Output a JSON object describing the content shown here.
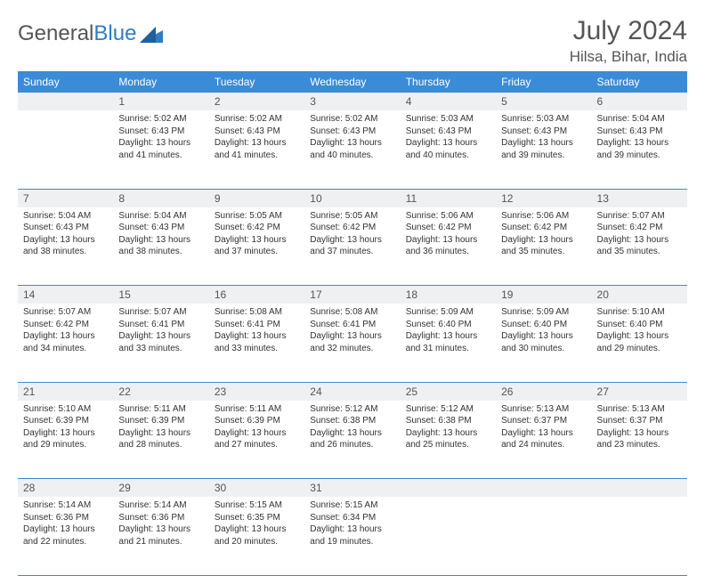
{
  "logo": {
    "text1": "General",
    "text2": "Blue"
  },
  "title": "July 2024",
  "location": "Hilsa, Bihar, India",
  "weekdays": [
    "Sunday",
    "Monday",
    "Tuesday",
    "Wednesday",
    "Thursday",
    "Friday",
    "Saturday"
  ],
  "colors": {
    "header_bg": "#3a8bd8",
    "header_fg": "#ffffff",
    "daynum_bg": "#eef0f2",
    "row_divider": "#3a8bd8",
    "text": "#555555"
  },
  "weeks": [
    [
      {
        "day": "",
        "lines": []
      },
      {
        "day": "1",
        "lines": [
          "Sunrise: 5:02 AM",
          "Sunset: 6:43 PM",
          "Daylight: 13 hours",
          "and 41 minutes."
        ]
      },
      {
        "day": "2",
        "lines": [
          "Sunrise: 5:02 AM",
          "Sunset: 6:43 PM",
          "Daylight: 13 hours",
          "and 41 minutes."
        ]
      },
      {
        "day": "3",
        "lines": [
          "Sunrise: 5:02 AM",
          "Sunset: 6:43 PM",
          "Daylight: 13 hours",
          "and 40 minutes."
        ]
      },
      {
        "day": "4",
        "lines": [
          "Sunrise: 5:03 AM",
          "Sunset: 6:43 PM",
          "Daylight: 13 hours",
          "and 40 minutes."
        ]
      },
      {
        "day": "5",
        "lines": [
          "Sunrise: 5:03 AM",
          "Sunset: 6:43 PM",
          "Daylight: 13 hours",
          "and 39 minutes."
        ]
      },
      {
        "day": "6",
        "lines": [
          "Sunrise: 5:04 AM",
          "Sunset: 6:43 PM",
          "Daylight: 13 hours",
          "and 39 minutes."
        ]
      }
    ],
    [
      {
        "day": "7",
        "lines": [
          "Sunrise: 5:04 AM",
          "Sunset: 6:43 PM",
          "Daylight: 13 hours",
          "and 38 minutes."
        ]
      },
      {
        "day": "8",
        "lines": [
          "Sunrise: 5:04 AM",
          "Sunset: 6:43 PM",
          "Daylight: 13 hours",
          "and 38 minutes."
        ]
      },
      {
        "day": "9",
        "lines": [
          "Sunrise: 5:05 AM",
          "Sunset: 6:42 PM",
          "Daylight: 13 hours",
          "and 37 minutes."
        ]
      },
      {
        "day": "10",
        "lines": [
          "Sunrise: 5:05 AM",
          "Sunset: 6:42 PM",
          "Daylight: 13 hours",
          "and 37 minutes."
        ]
      },
      {
        "day": "11",
        "lines": [
          "Sunrise: 5:06 AM",
          "Sunset: 6:42 PM",
          "Daylight: 13 hours",
          "and 36 minutes."
        ]
      },
      {
        "day": "12",
        "lines": [
          "Sunrise: 5:06 AM",
          "Sunset: 6:42 PM",
          "Daylight: 13 hours",
          "and 35 minutes."
        ]
      },
      {
        "day": "13",
        "lines": [
          "Sunrise: 5:07 AM",
          "Sunset: 6:42 PM",
          "Daylight: 13 hours",
          "and 35 minutes."
        ]
      }
    ],
    [
      {
        "day": "14",
        "lines": [
          "Sunrise: 5:07 AM",
          "Sunset: 6:42 PM",
          "Daylight: 13 hours",
          "and 34 minutes."
        ]
      },
      {
        "day": "15",
        "lines": [
          "Sunrise: 5:07 AM",
          "Sunset: 6:41 PM",
          "Daylight: 13 hours",
          "and 33 minutes."
        ]
      },
      {
        "day": "16",
        "lines": [
          "Sunrise: 5:08 AM",
          "Sunset: 6:41 PM",
          "Daylight: 13 hours",
          "and 33 minutes."
        ]
      },
      {
        "day": "17",
        "lines": [
          "Sunrise: 5:08 AM",
          "Sunset: 6:41 PM",
          "Daylight: 13 hours",
          "and 32 minutes."
        ]
      },
      {
        "day": "18",
        "lines": [
          "Sunrise: 5:09 AM",
          "Sunset: 6:40 PM",
          "Daylight: 13 hours",
          "and 31 minutes."
        ]
      },
      {
        "day": "19",
        "lines": [
          "Sunrise: 5:09 AM",
          "Sunset: 6:40 PM",
          "Daylight: 13 hours",
          "and 30 minutes."
        ]
      },
      {
        "day": "20",
        "lines": [
          "Sunrise: 5:10 AM",
          "Sunset: 6:40 PM",
          "Daylight: 13 hours",
          "and 29 minutes."
        ]
      }
    ],
    [
      {
        "day": "21",
        "lines": [
          "Sunrise: 5:10 AM",
          "Sunset: 6:39 PM",
          "Daylight: 13 hours",
          "and 29 minutes."
        ]
      },
      {
        "day": "22",
        "lines": [
          "Sunrise: 5:11 AM",
          "Sunset: 6:39 PM",
          "Daylight: 13 hours",
          "and 28 minutes."
        ]
      },
      {
        "day": "23",
        "lines": [
          "Sunrise: 5:11 AM",
          "Sunset: 6:39 PM",
          "Daylight: 13 hours",
          "and 27 minutes."
        ]
      },
      {
        "day": "24",
        "lines": [
          "Sunrise: 5:12 AM",
          "Sunset: 6:38 PM",
          "Daylight: 13 hours",
          "and 26 minutes."
        ]
      },
      {
        "day": "25",
        "lines": [
          "Sunrise: 5:12 AM",
          "Sunset: 6:38 PM",
          "Daylight: 13 hours",
          "and 25 minutes."
        ]
      },
      {
        "day": "26",
        "lines": [
          "Sunrise: 5:13 AM",
          "Sunset: 6:37 PM",
          "Daylight: 13 hours",
          "and 24 minutes."
        ]
      },
      {
        "day": "27",
        "lines": [
          "Sunrise: 5:13 AM",
          "Sunset: 6:37 PM",
          "Daylight: 13 hours",
          "and 23 minutes."
        ]
      }
    ],
    [
      {
        "day": "28",
        "lines": [
          "Sunrise: 5:14 AM",
          "Sunset: 6:36 PM",
          "Daylight: 13 hours",
          "and 22 minutes."
        ]
      },
      {
        "day": "29",
        "lines": [
          "Sunrise: 5:14 AM",
          "Sunset: 6:36 PM",
          "Daylight: 13 hours",
          "and 21 minutes."
        ]
      },
      {
        "day": "30",
        "lines": [
          "Sunrise: 5:15 AM",
          "Sunset: 6:35 PM",
          "Daylight: 13 hours",
          "and 20 minutes."
        ]
      },
      {
        "day": "31",
        "lines": [
          "Sunrise: 5:15 AM",
          "Sunset: 6:34 PM",
          "Daylight: 13 hours",
          "and 19 minutes."
        ]
      },
      {
        "day": "",
        "lines": []
      },
      {
        "day": "",
        "lines": []
      },
      {
        "day": "",
        "lines": []
      }
    ]
  ]
}
